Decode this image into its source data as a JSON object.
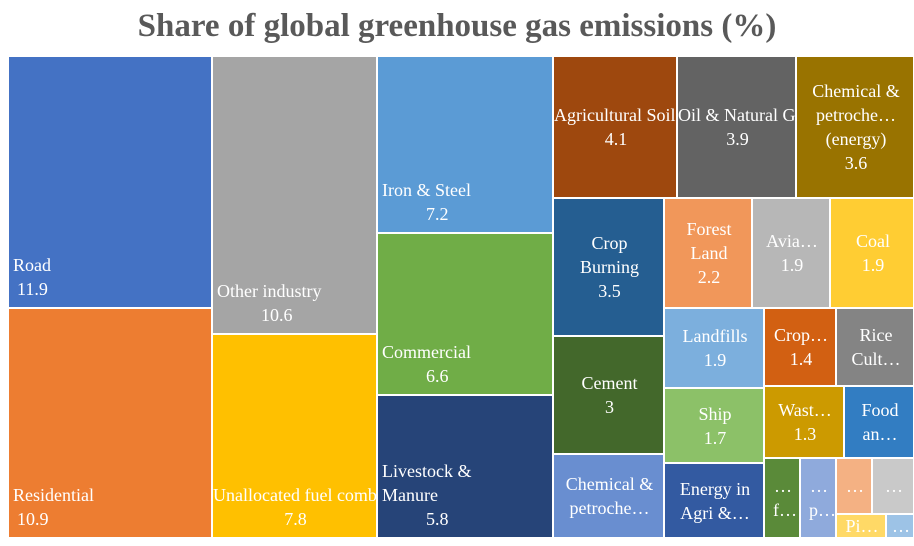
{
  "chart_data": {
    "type": "treemap",
    "title": "Share of global greenhouse gas emissions (%)",
    "tiles": [
      {
        "label": "Road",
        "value": 11.9,
        "color": "#4472C4"
      },
      {
        "label": "Residential",
        "value": 10.9,
        "color": "#ED7D31"
      },
      {
        "label": "Other industry",
        "value": 10.6,
        "color": "#A5A5A5"
      },
      {
        "label": "Unallocated fuel combustion",
        "value": 7.8,
        "color": "#FFC000"
      },
      {
        "label": "Iron & Steel",
        "value": 7.2,
        "color": "#5B9BD5"
      },
      {
        "label": "Commercial",
        "value": 6.6,
        "color": "#70AD47"
      },
      {
        "label": "Livestock & Manure",
        "value": 5.8,
        "color": "#264478"
      },
      {
        "label": "Agricultural Soils",
        "value": 4.1,
        "color": "#9E480E"
      },
      {
        "label": "Oil & Natural Gas",
        "value": 3.9,
        "color": "#636363"
      },
      {
        "label": "Chemical & petroche… (energy)",
        "value": 3.6,
        "color": "#997300"
      },
      {
        "label": "Crop Burning",
        "value": 3.5,
        "color": "#255E91"
      },
      {
        "label": "Cement",
        "value": 3,
        "color": "#43682B"
      },
      {
        "label": "Chemical & petroche…",
        "value": null,
        "color": "#698ED0"
      },
      {
        "label": "Forest Land",
        "value": 2.2,
        "color": "#F1975A"
      },
      {
        "label": "Avia…",
        "value": 1.9,
        "color": "#B7B7B7"
      },
      {
        "label": "Coal",
        "value": 1.9,
        "color": "#FFCD33"
      },
      {
        "label": "Landfills",
        "value": 1.9,
        "color": "#7CAFDD"
      },
      {
        "label": "Ship",
        "value": 1.7,
        "color": "#8CC168"
      },
      {
        "label": "Energy in Agri &…",
        "value": null,
        "color": "#335AA1"
      },
      {
        "label": "Crop…",
        "value": 1.4,
        "color": "#D26012"
      },
      {
        "label": "Rice Cult…",
        "value": null,
        "color": "#848484"
      },
      {
        "label": "Wast…",
        "value": 1.3,
        "color": "#CC9A00"
      },
      {
        "label": "Food an…",
        "value": null,
        "color": "#327DC2"
      },
      {
        "label": "… f…",
        "value": null,
        "color": "#5A8A39"
      },
      {
        "label": "… p…",
        "value": null,
        "color": "#8FAADC"
      },
      {
        "label": "…",
        "value": null,
        "color": "#F4B183"
      },
      {
        "label": "…",
        "value": null,
        "color": "#C9C9C9"
      },
      {
        "label": "Pi…",
        "value": null,
        "color": "#FFD966"
      },
      {
        "label": "…",
        "value": null,
        "color": "#9DC3E6"
      }
    ]
  }
}
